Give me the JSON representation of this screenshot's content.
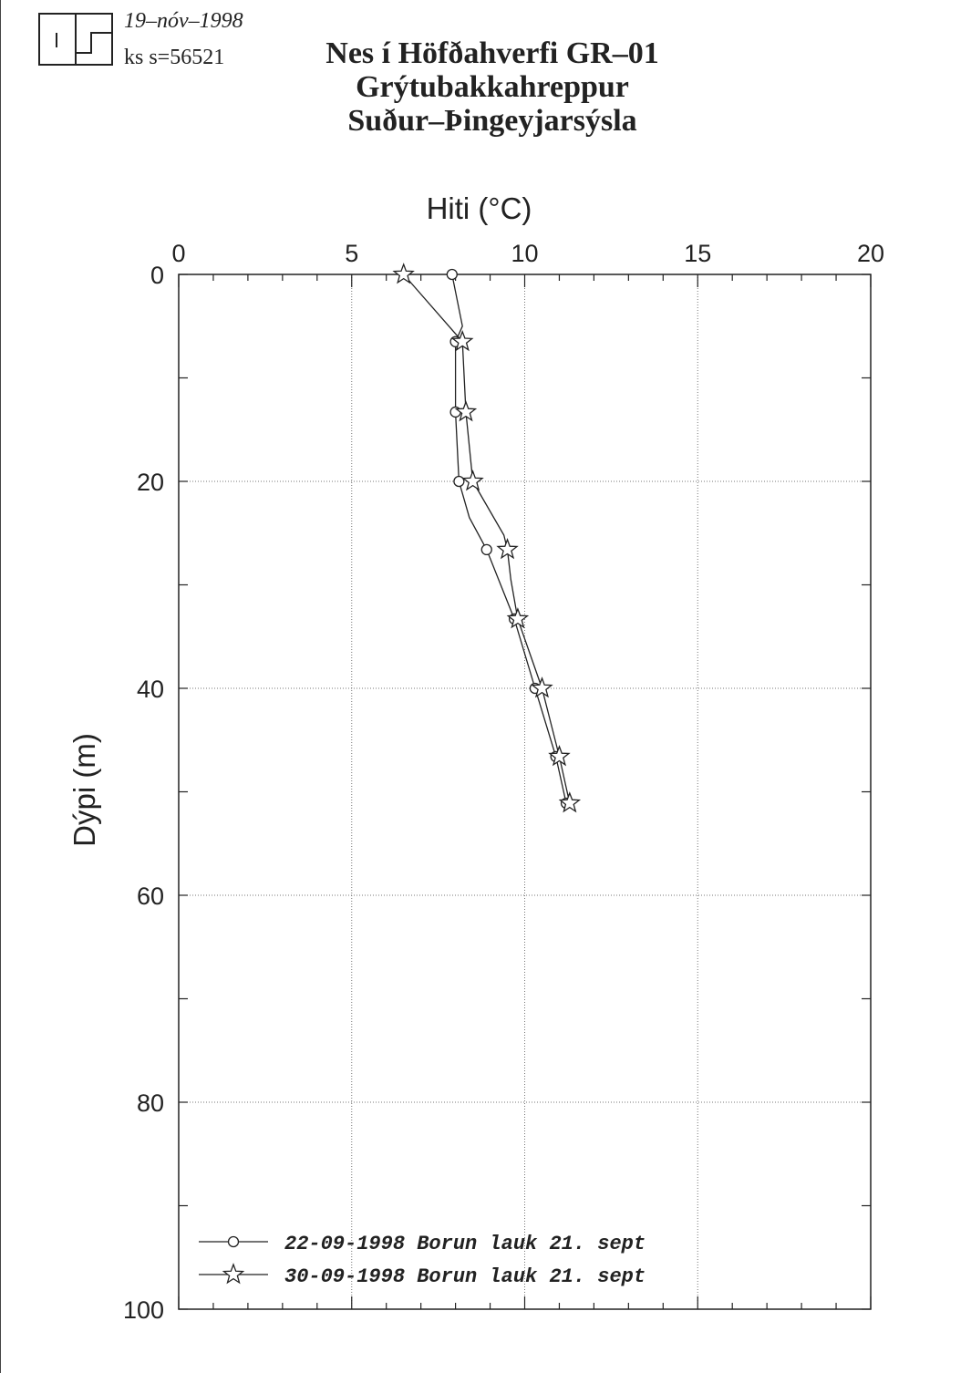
{
  "header": {
    "logo_text": "ÍS",
    "date": "19–nóv–1998",
    "ks": "ks s=56521",
    "title_line1": "Nes í Höfðahverfi  GR–01",
    "title_line2": "Grýtubakkahreppur",
    "title_line3": "Suður–Þingeyjarsýsla"
  },
  "chart_data": {
    "type": "line",
    "title": "Nes í Höfðahverfi  GR–01",
    "xlabel": "Hiti (°C)",
    "ylabel": "Dýpi (m)",
    "xlim": [
      0,
      20
    ],
    "ylim": [
      0,
      100
    ],
    "y_inverted": true,
    "x_axis_position": "top",
    "x_ticks": [
      0,
      5,
      10,
      15,
      20
    ],
    "y_ticks": [
      0,
      20,
      40,
      60,
      80,
      100
    ],
    "grid": true,
    "legend_position": "bottom-left",
    "series": [
      {
        "name": "22-09-1998 Borun lauk 21. sept",
        "marker": "circle",
        "points": [
          {
            "x": 7.9,
            "y": 0
          },
          {
            "x": 8.2,
            "y": 5
          },
          {
            "x": 8.0,
            "y": 6.5
          },
          {
            "x": 8.0,
            "y": 13.3
          },
          {
            "x": 8.1,
            "y": 20
          },
          {
            "x": 8.4,
            "y": 23.5
          },
          {
            "x": 8.9,
            "y": 26.6
          },
          {
            "x": 9.7,
            "y": 33.3
          },
          {
            "x": 10.3,
            "y": 40
          },
          {
            "x": 10.9,
            "y": 46.6
          },
          {
            "x": 11.2,
            "y": 51.1
          }
        ]
      },
      {
        "name": "30-09-1998 Borun lauk 21. sept",
        "marker": "star",
        "points": [
          {
            "x": 6.5,
            "y": 0
          },
          {
            "x": 8.2,
            "y": 6.5
          },
          {
            "x": 8.3,
            "y": 13.3
          },
          {
            "x": 8.5,
            "y": 20
          },
          {
            "x": 9.4,
            "y": 25.2
          },
          {
            "x": 9.5,
            "y": 26.6
          },
          {
            "x": 9.6,
            "y": 29.5
          },
          {
            "x": 9.8,
            "y": 33.3
          },
          {
            "x": 10.5,
            "y": 40
          },
          {
            "x": 11.0,
            "y": 46.6
          },
          {
            "x": 11.3,
            "y": 51.1
          }
        ]
      }
    ]
  }
}
